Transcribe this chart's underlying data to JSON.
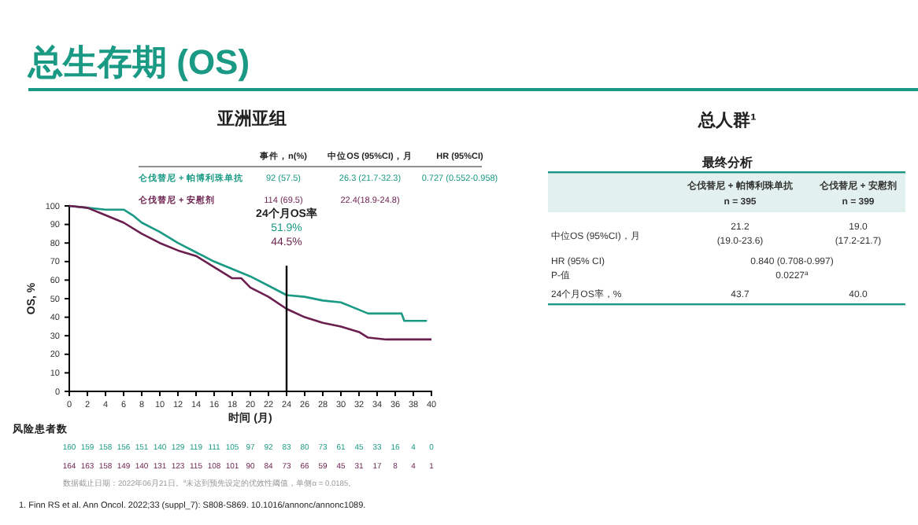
{
  "chart_data": [
    {
      "type": "line",
      "title": "总生存期 (OS)",
      "subtitle": "亚洲亚组",
      "xlabel": "时间 (月)",
      "ylabel": "OS, %",
      "xlim": [
        0,
        40
      ],
      "xticks": [
        0,
        2,
        4,
        6,
        8,
        10,
        12,
        14,
        16,
        18,
        20,
        22,
        24,
        26,
        28,
        30,
        32,
        34,
        36,
        38,
        40
      ],
      "ylim": [
        0,
        100
      ],
      "yticks": [
        0,
        10,
        20,
        30,
        40,
        50,
        60,
        70,
        80,
        90,
        100
      ],
      "legend": "top",
      "marker": "none",
      "line_style": "solid",
      "ref_lines": [
        {
          "axis": "x",
          "value": 24,
          "label": "24个月OS率",
          "color": "#000000"
        }
      ],
      "series": [
        {
          "name": "仑伐替尼 + 帕博利珠单抗",
          "color": "#1a9a84",
          "x": [
            0,
            2,
            4,
            6,
            7,
            8,
            10,
            12,
            14,
            16,
            18,
            20,
            22,
            24,
            26,
            28,
            30,
            32,
            33,
            36.7,
            37,
            39.5
          ],
          "values": [
            100,
            99,
            98,
            98,
            95,
            91,
            86,
            80,
            75,
            70,
            66,
            62,
            57,
            51.9,
            51,
            49,
            48,
            44,
            42,
            42,
            38,
            38
          ]
        },
        {
          "name": "仑伐替尼 + 安慰剂",
          "color": "#6b1f4e",
          "x": [
            0,
            2,
            4,
            6,
            8,
            10,
            12,
            14,
            16,
            18,
            19,
            20,
            22,
            24,
            26,
            28,
            30,
            32,
            33,
            35,
            40
          ],
          "values": [
            100,
            99,
            95,
            91,
            85,
            80,
            76,
            73,
            67,
            61,
            61,
            56,
            51,
            44.5,
            40,
            37,
            35,
            32,
            29,
            28,
            28
          ]
        }
      ],
      "annotations": [
        "事件，n(%)",
        "中位OS (95%CI)，月",
        "HR (95%CI)",
        "92 (57.5)",
        "26.3 (21.7-32.3)",
        "0.727 (0.552-0.958)",
        "114 (69.5)",
        "22.4(18.9-24.8)",
        "51.9%",
        "44.5%",
        "风险患者数",
        "160 159 158 156 151 140 129 119 111 105 97 92 83 80 73 61 45 33 16 4 0",
        "164 163 158 149 140 131 123 115 108 101 90 84 73 66 59 45 31 17 8 4 1",
        "数据截止日期：2022年06月21日。$^{a}$未达到预先设定的优效性阈值，单侧α = 0.0185。",
        "1. Finn RS et al. Ann Oncol. 2022;33 (suppl_7): S808-S869. 10.1016/annonc/annonc1089."
      ]
    },
    {
      "type": "other",
      "title": "总人群¹",
      "subtitle": "最终分析",
      "annotations": [
        "仑伐替尼 + 帕博利珠单抗",
        "n = 395",
        "仑伐替尼 + 安慰剂",
        "n = 399",
        "中位OS (95%CI)，月",
        "21.2",
        "(19.0-23.6)",
        "19.0",
        "(17.2-21.7)",
        "HR (95% CI)",
        "P-值",
        "0.840 (0.708-0.997)",
        "0.0227$^{a}$",
        "24个月OS率，%",
        "43.7",
        "40.0"
      ]
    }
  ]
}
